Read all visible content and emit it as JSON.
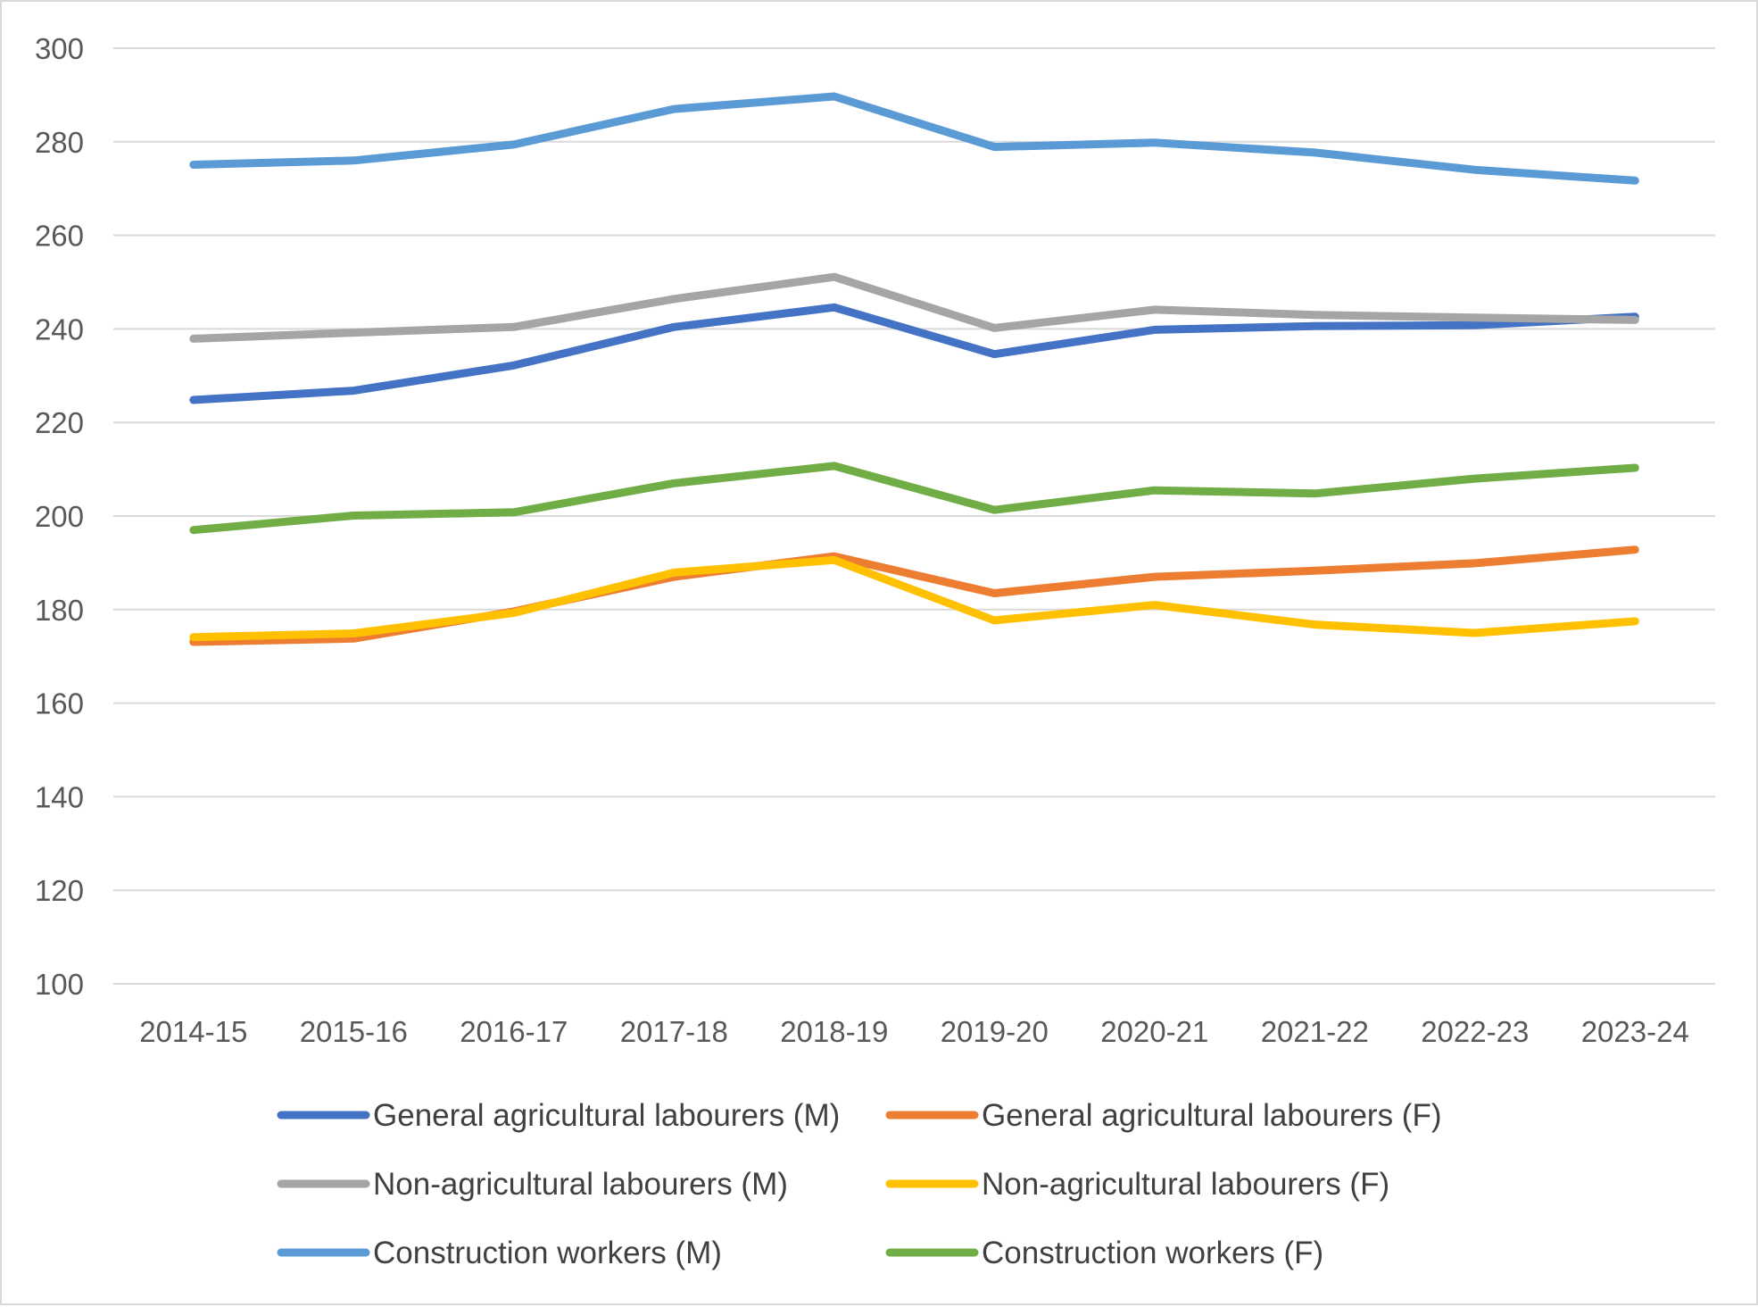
{
  "chart_data": {
    "type": "line",
    "title": "",
    "xlabel": "",
    "ylabel": "",
    "ylim": [
      100,
      300
    ],
    "y_ticks": [
      "100",
      "120",
      "140",
      "160",
      "180",
      "200",
      "220",
      "240",
      "260",
      "280",
      "300"
    ],
    "grid": true,
    "legend_position": "bottom",
    "categories": [
      "2014-15",
      "2015-16",
      "2016-17",
      "2017-18",
      "2018-19",
      "2019-20",
      "2020-21",
      "2021-22",
      "2022-23",
      "2023-24"
    ],
    "series": [
      {
        "name": "General agricultural labourers (M)",
        "color": "#4472c4",
        "values": [
          224.8,
          226.8,
          232.2,
          240.4,
          244.6,
          234.6,
          239.8,
          240.6,
          240.8,
          242.6
        ]
      },
      {
        "name": "General agricultural labourers (F)",
        "color": "#ed7d31",
        "values": [
          173.1,
          173.8,
          179.6,
          187.0,
          191.4,
          183.5,
          187.0,
          188.3,
          189.9,
          192.8
        ]
      },
      {
        "name": "Non-agricultural labourers (M)",
        "color": "#a5a5a5",
        "values": [
          237.9,
          239.2,
          240.4,
          246.4,
          251.1,
          240.2,
          244.1,
          243.0,
          242.4,
          241.9
        ]
      },
      {
        "name": "Non-agricultural labourers (F)",
        "color": "#ffc000",
        "values": [
          174.1,
          174.9,
          179.3,
          187.9,
          190.6,
          177.7,
          181.0,
          176.8,
          175.0,
          177.5
        ]
      },
      {
        "name": "Construction workers (M)",
        "color": "#5b9bd5",
        "values": [
          275.1,
          276.0,
          279.4,
          287.0,
          289.7,
          278.9,
          279.8,
          277.7,
          274.0,
          271.7
        ]
      },
      {
        "name": "Construction workers (F)",
        "color": "#70ad47",
        "values": [
          197.0,
          200.1,
          200.8,
          207.0,
          210.7,
          201.3,
          205.5,
          204.8,
          208.0,
          210.3
        ]
      }
    ]
  }
}
